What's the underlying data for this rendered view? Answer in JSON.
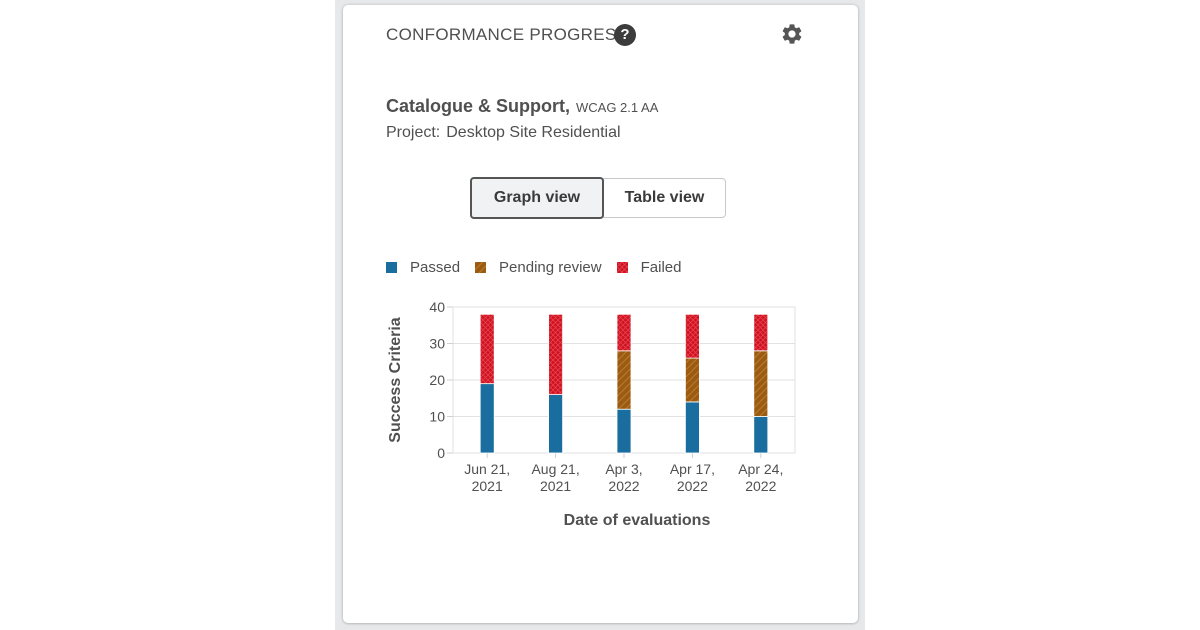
{
  "card": {
    "title": "CONFORMANCE PROGRESS",
    "help_icon": "help-icon",
    "settings_icon": "gear-icon"
  },
  "audit": {
    "name": "Catalogue & Support,",
    "standard": "WCAG 2.1 AA",
    "project_label": "Project:",
    "project_name": "Desktop Site Residential"
  },
  "view_toggle": {
    "graph_label": "Graph view",
    "table_label": "Table view",
    "selected": "Graph view"
  },
  "legend": [
    {
      "label": "Passed",
      "color": "#1a6e9f",
      "pattern": "solid"
    },
    {
      "label": "Pending review",
      "color": "#9a5b12",
      "pattern": "hatched"
    },
    {
      "label": "Failed",
      "color": "#d0101f",
      "pattern": "crosshatch"
    }
  ],
  "chart_data": {
    "type": "bar",
    "stacked": true,
    "xlabel": "Date of evaluations",
    "ylabel": "Success Criteria",
    "ylim": [
      0,
      40
    ],
    "yticks": [
      0,
      10,
      20,
      30,
      40
    ],
    "grid": true,
    "legend_position": "top-left",
    "categories": [
      [
        "Jun 21,",
        "2021"
      ],
      [
        "Aug 21,",
        "2021"
      ],
      [
        "Apr 3,",
        "2022"
      ],
      [
        "Apr 17,",
        "2022"
      ],
      [
        "Apr 24,",
        "2022"
      ]
    ],
    "series": [
      {
        "name": "Passed",
        "color": "#1a6e9f",
        "values": [
          19,
          16,
          12,
          14,
          10
        ]
      },
      {
        "name": "Pending review",
        "color": "#9a5b12",
        "values": [
          0,
          0,
          16,
          12,
          18
        ]
      },
      {
        "name": "Failed",
        "color": "#d0101f",
        "values": [
          19,
          22,
          10,
          12,
          10
        ]
      }
    ]
  }
}
